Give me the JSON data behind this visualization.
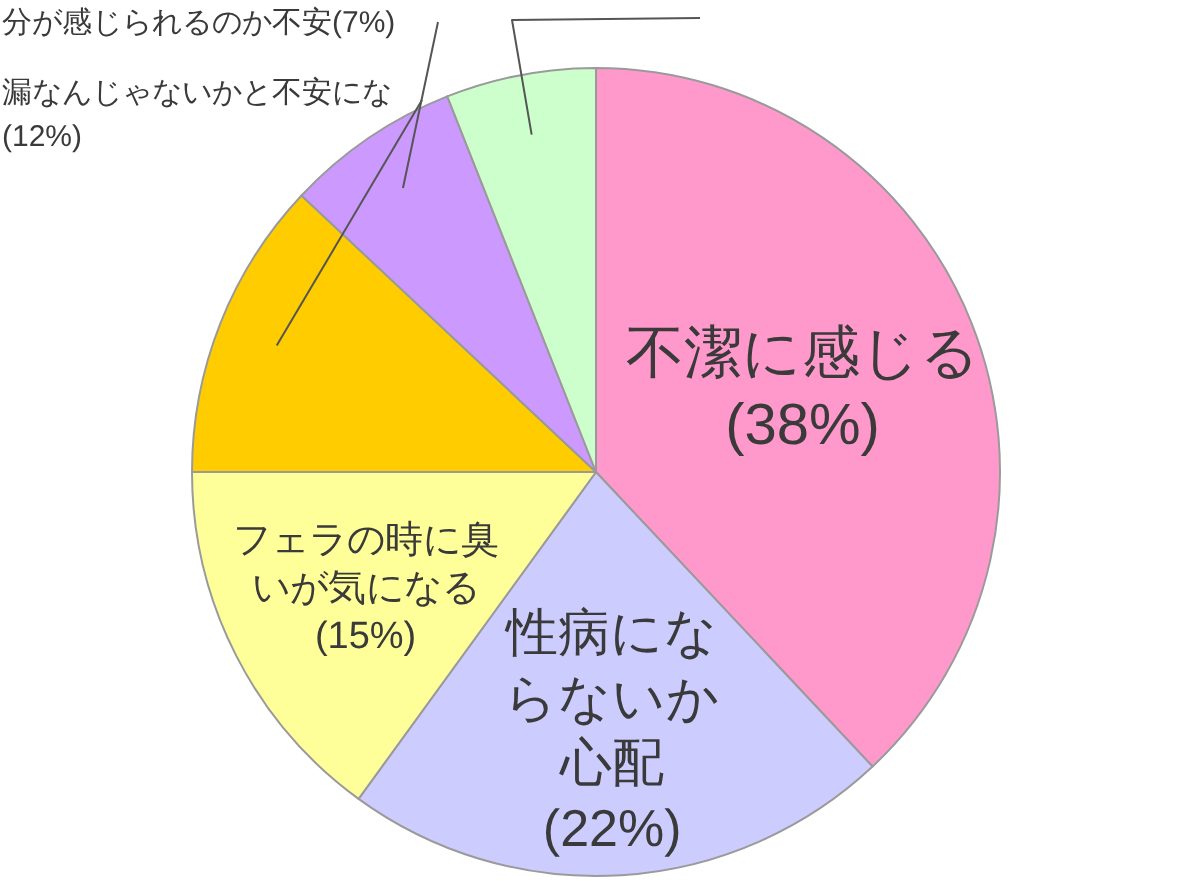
{
  "chart_data": {
    "type": "pie",
    "categories": [
      "不潔に感じる",
      "性病にならないか心配",
      "フェラの時に臭いが気になる",
      "漏なんじゃないかと不安にな",
      "分が感じられるのか不安",
      null
    ],
    "values": [
      38,
      22,
      15,
      12,
      7,
      6
    ],
    "colors": [
      "#ff99cc",
      "#ccccff",
      "#ffff99",
      "#ffcc00",
      "#cc99ff",
      "#ccffcc"
    ],
    "value_labels": [
      "(38%)",
      "(22%)",
      "(15%)",
      "(12%)",
      "(7%)",
      null
    ]
  }
}
